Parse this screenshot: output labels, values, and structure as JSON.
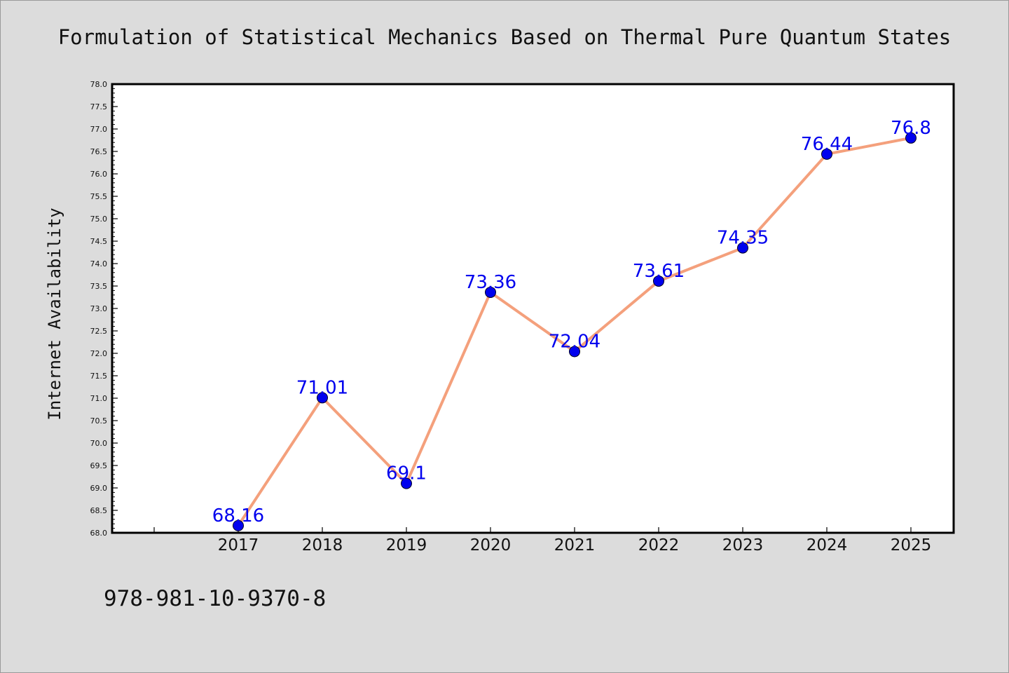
{
  "page": {
    "title": "Formulation of Statistical Mechanics Based on Thermal Pure Quantum States",
    "footer": "978-981-10-9370-8"
  },
  "chart_data": {
    "type": "line",
    "title": "Formulation of Statistical Mechanics Based on Thermal Pure Quantum States",
    "xlabel": "",
    "ylabel": "Internet Availability",
    "categories": [
      "2017",
      "2018",
      "2019",
      "2020",
      "2021",
      "2022",
      "2023",
      "2024",
      "2025"
    ],
    "series": [
      {
        "values": [
          68.16,
          71.01,
          69.1,
          73.36,
          72.04,
          73.61,
          74.35,
          76.44,
          76.8
        ],
        "labels": [
          "68.16",
          "71.01",
          "69.1",
          "73.36",
          "72.04",
          "73.61",
          "74.35",
          "76.44",
          "76.8"
        ]
      }
    ],
    "ylim": [
      68.0,
      78.0
    ],
    "yticks": [
      "68.0",
      "68.5",
      "69.0",
      "69.5",
      "70.0",
      "70.5",
      "71.0",
      "71.5",
      "72.0",
      "72.5",
      "73.0",
      "73.5",
      "74.0",
      "74.5",
      "75.0",
      "75.5",
      "76.0",
      "76.5",
      "77.0",
      "77.5",
      "78.0"
    ],
    "grid": false,
    "legend": "none",
    "colors": {
      "line": "#f4a07c",
      "marker": "#0000ee",
      "label": "#0000ee",
      "background": "#dcdcdc",
      "plot_background": "#ffffff"
    }
  }
}
